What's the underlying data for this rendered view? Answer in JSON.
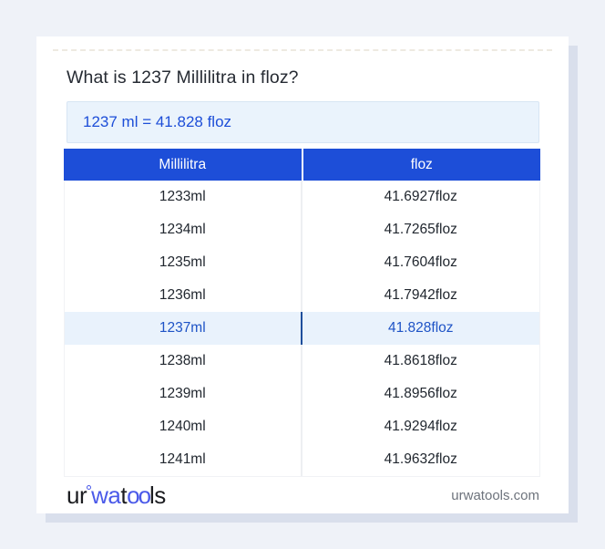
{
  "page": {
    "title": "What is 1237 Millilitra in floz?",
    "result": "1237 ml = 41.828 floz"
  },
  "table": {
    "headers": [
      "Millilitra",
      "floz"
    ],
    "rows": [
      {
        "ml": "1233ml",
        "floz": "41.6927floz",
        "highlight": false
      },
      {
        "ml": "1234ml",
        "floz": "41.7265floz",
        "highlight": false
      },
      {
        "ml": "1235ml",
        "floz": "41.7604floz",
        "highlight": false
      },
      {
        "ml": "1236ml",
        "floz": "41.7942floz",
        "highlight": false
      },
      {
        "ml": "1237ml",
        "floz": "41.828floz",
        "highlight": true
      },
      {
        "ml": "1238ml",
        "floz": "41.8618floz",
        "highlight": false
      },
      {
        "ml": "1239ml",
        "floz": "41.8956floz",
        "highlight": false
      },
      {
        "ml": "1240ml",
        "floz": "41.9294floz",
        "highlight": false
      },
      {
        "ml": "1241ml",
        "floz": "41.9632floz",
        "highlight": false
      }
    ]
  },
  "footer": {
    "logo": {
      "part_ur": "ur",
      "part_wa": "wa",
      "part_t": "t",
      "part_oo": "oo",
      "part_ls": "ls"
    },
    "domain": "urwatools.com"
  },
  "colors": {
    "page_bg": "#eff2f8",
    "card_bg": "#ffffff",
    "card_shadow": "#d9dfec",
    "title_text": "#262b33",
    "result_bg": "#eaf3fc",
    "result_border": "#d7e5f3",
    "result_text": "#1d4ed8",
    "header_blue": "#1d4ed8",
    "header_text": "#ffffff",
    "row_text": "#21272f",
    "divider": "#edeff2",
    "table_border": "#f1f2f5",
    "highlight_bg": "#e9f2fc",
    "highlight_text": "#1e53c6",
    "highlight_divider": "#1e4e9b",
    "logo_dark": "#1b1c20",
    "logo_blue": "#4b5ae9",
    "domain_text": "#6d737c"
  }
}
